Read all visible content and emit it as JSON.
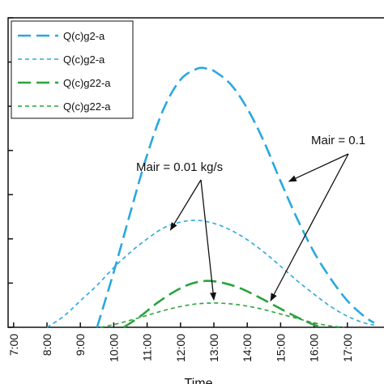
{
  "chart_data": {
    "type": "line",
    "title": "",
    "xlabel": "Time",
    "ylabel": "",
    "x_ticks": [
      "7:00",
      "8:00",
      "9:00",
      "10:00",
      "11:00",
      "12:00",
      "13:00",
      "14:00",
      "15:00",
      "16:00",
      "17:00"
    ],
    "xlim": [
      7.0,
      17.8
    ],
    "ylim": [
      0,
      7
    ],
    "y_tick_count": 8,
    "grid": false,
    "legend": {
      "placement": "top-left",
      "entries": [
        "Q(c)g2-a",
        "Q(c)g2-a",
        "Q(c)g22-a",
        "Q(c)g22-a"
      ]
    },
    "series": [
      {
        "name": "Q(c)g2-a",
        "color": "#29a8e0",
        "style": "long-dash-thick",
        "x": [
          9.5,
          10.0,
          10.5,
          11.0,
          11.5,
          12.0,
          12.5,
          12.8,
          13.0,
          13.5,
          14.0,
          14.5,
          15.0,
          15.5,
          16.0,
          16.5,
          17.0,
          17.5,
          17.8
        ],
        "y": [
          0.0,
          1.25,
          2.6,
          3.9,
          4.95,
          5.6,
          5.85,
          5.85,
          5.8,
          5.5,
          4.95,
          4.2,
          3.3,
          2.45,
          1.7,
          1.1,
          0.6,
          0.25,
          0.1
        ]
      },
      {
        "name": "Q(c)g2-a",
        "color": "#29a8e0",
        "style": "short-dash-thin",
        "x": [
          8.0,
          8.5,
          9.0,
          9.5,
          10.0,
          10.5,
          11.0,
          11.5,
          12.0,
          12.5,
          13.0,
          13.5,
          14.0,
          14.5,
          15.0,
          15.5,
          16.0,
          16.5,
          17.0,
          17.5,
          17.8
        ],
        "y": [
          0.0,
          0.25,
          0.6,
          0.95,
          1.35,
          1.7,
          2.0,
          2.25,
          2.38,
          2.42,
          2.35,
          2.2,
          1.98,
          1.7,
          1.38,
          1.05,
          0.75,
          0.47,
          0.25,
          0.1,
          0.05
        ]
      },
      {
        "name": "Q(c)g22-a",
        "color": "#2aa33d",
        "style": "long-dash-thick",
        "x": [
          10.3,
          10.8,
          11.3,
          11.8,
          12.3,
          12.8,
          13.3,
          13.8,
          14.3,
          14.8,
          15.3,
          15.8,
          16.2
        ],
        "y": [
          0.0,
          0.25,
          0.55,
          0.8,
          0.98,
          1.05,
          1.0,
          0.88,
          0.7,
          0.5,
          0.3,
          0.12,
          0.0
        ]
      },
      {
        "name": "Q(c)g22-a",
        "color": "#2aa33d",
        "style": "short-dash-thin",
        "x": [
          9.6,
          10.0,
          10.5,
          11.0,
          11.5,
          12.0,
          12.5,
          13.0,
          13.5,
          14.0,
          14.5,
          15.0,
          15.5,
          16.0,
          16.5,
          16.9
        ],
        "y": [
          0.0,
          0.06,
          0.16,
          0.27,
          0.38,
          0.47,
          0.53,
          0.55,
          0.53,
          0.48,
          0.4,
          0.3,
          0.2,
          0.1,
          0.03,
          0.0
        ]
      }
    ],
    "annotations": [
      {
        "text": "Mair = 0.01 kg/s",
        "arrows_to": [
          [
            11.7,
            2.2
          ],
          [
            13.0,
            0.62
          ]
        ]
      },
      {
        "text": "Mair = 0.1",
        "arrows_to": [
          [
            15.25,
            3.3
          ],
          [
            14.7,
            0.6
          ]
        ]
      }
    ]
  }
}
